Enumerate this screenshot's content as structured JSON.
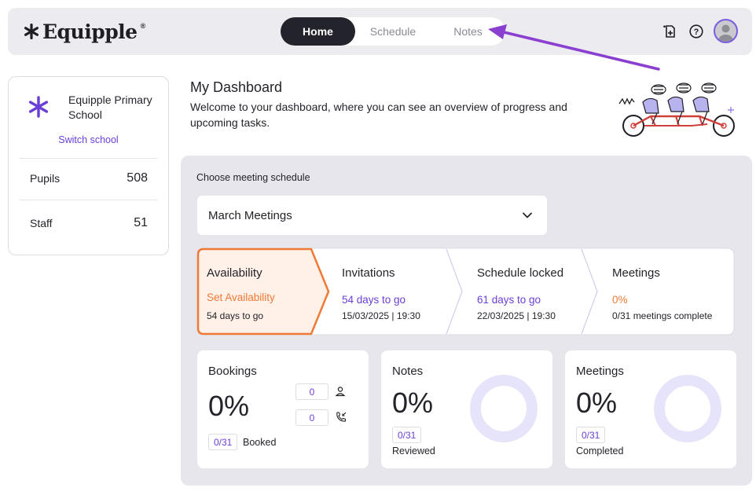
{
  "header": {
    "brand": "Equipple",
    "brand_mark": "®",
    "nav": [
      {
        "label": "Home",
        "active": true
      },
      {
        "label": "Schedule",
        "active": false
      },
      {
        "label": "Notes",
        "active": false
      }
    ],
    "icons": [
      "add-document-icon",
      "help-icon",
      "avatar"
    ]
  },
  "school": {
    "name": "Equipple Primary School",
    "switch_label": "Switch school",
    "stats": [
      {
        "label": "Pupils",
        "value": "508"
      },
      {
        "label": "Staff",
        "value": "51"
      }
    ]
  },
  "dashboard": {
    "title": "My Dashboard",
    "description": "Welcome to your dashboard, where you can see an overview of progress and upcoming tasks."
  },
  "schedule": {
    "label": "Choose meeting schedule",
    "selected": "March Meetings"
  },
  "steps": [
    {
      "title": "Availability",
      "status": "Set Availability",
      "sub": "54 days to go",
      "active": true
    },
    {
      "title": "Invitations",
      "status": "54 days to go",
      "sub": "15/03/2025 | 19:30"
    },
    {
      "title": "Schedule locked",
      "status": "61 days to go",
      "sub": "22/03/2025 | 19:30"
    },
    {
      "title": "Meetings",
      "status": "0%",
      "sub": "0/31 meetings complete"
    }
  ],
  "cards": {
    "bookings": {
      "title": "Bookings",
      "percent": "0%",
      "parent_count": "0",
      "phone_count": "0",
      "booked_fraction": "0/31",
      "booked_label": "Booked"
    },
    "notes": {
      "title": "Notes",
      "percent": "0%",
      "fraction": "0/31",
      "label": "Reviewed",
      "progress": 0
    },
    "meetings": {
      "title": "Meetings",
      "percent": "0%",
      "fraction": "0/31",
      "label": "Completed",
      "progress": 0
    }
  },
  "colors": {
    "accent": "#6a3fd6",
    "active_step": "#ee7a35",
    "active_step_fill": "#fff0e8",
    "donut_track": "#e6e4fa",
    "dark_tab": "#23232b"
  }
}
